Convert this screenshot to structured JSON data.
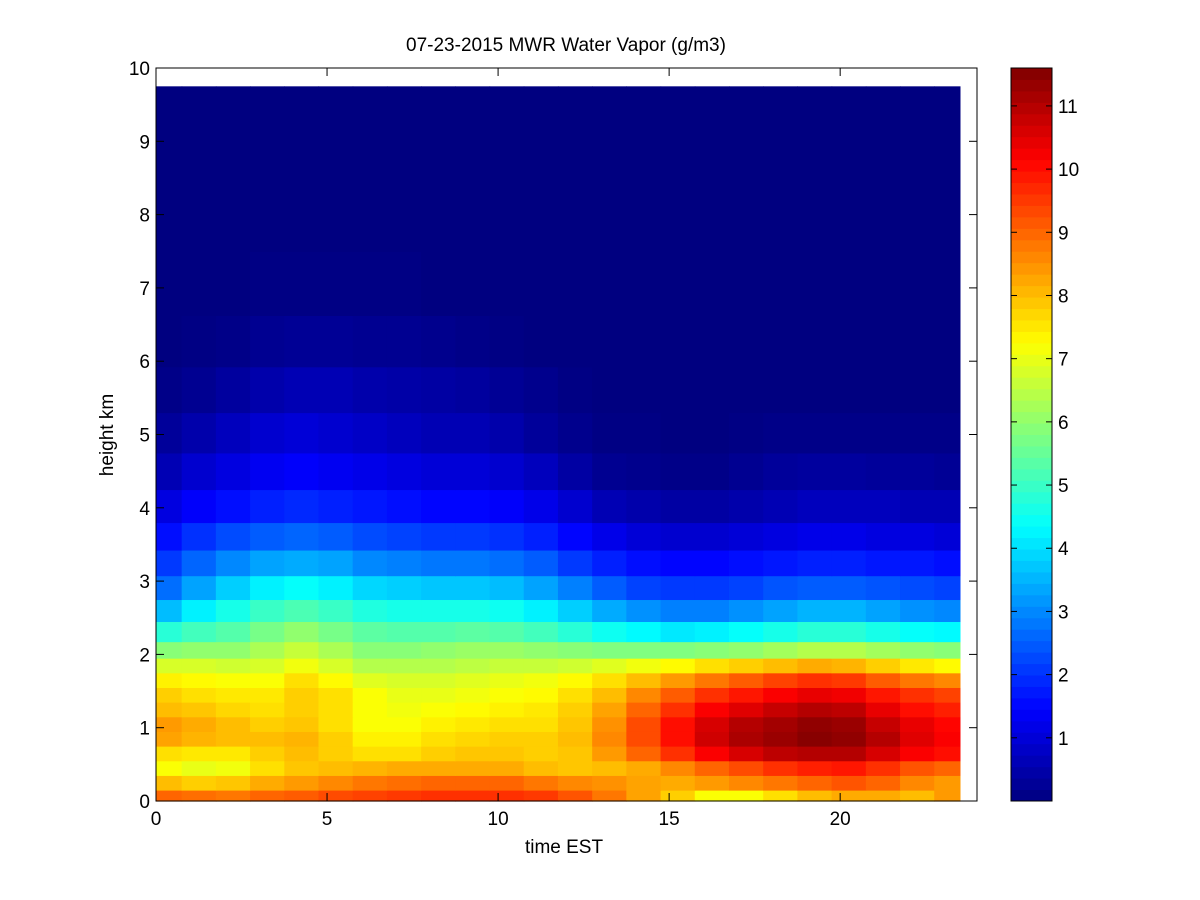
{
  "chart_data": {
    "type": "heatmap",
    "title": "07-23-2015 MWR Water Vapor (g/m3)",
    "xlabel": "time EST",
    "ylabel": "height km",
    "xlim": [
      0,
      24
    ],
    "ylim": [
      0,
      10
    ],
    "xticks": [
      0,
      5,
      10,
      15,
      20
    ],
    "yticks": [
      0,
      1,
      2,
      3,
      4,
      5,
      6,
      7,
      8,
      9,
      10
    ],
    "colorbar": {
      "colormap": "jet",
      "range": [
        0,
        11.6
      ],
      "ticks": [
        1,
        2,
        3,
        4,
        5,
        6,
        7,
        8,
        9,
        10,
        11
      ]
    },
    "grid": false,
    "data_extent": {
      "time": [
        0,
        23.5
      ],
      "height": [
        0,
        9.75
      ]
    },
    "time_EST": [
      0.25,
      1.25,
      2.25,
      3.25,
      4.25,
      5.25,
      6.25,
      7.25,
      8.25,
      9.25,
      10.25,
      11.25,
      12.25,
      13.25,
      14.25,
      15.25,
      16.25,
      17.25,
      18.25,
      19.25,
      20.25,
      21.25,
      22.25,
      23.25
    ],
    "height_km": [
      0.05,
      0.25,
      0.45,
      0.65,
      0.85,
      1.05,
      1.25,
      1.45,
      1.65,
      1.85,
      2.05,
      2.3,
      2.6,
      2.9,
      3.25,
      3.6,
      4.0,
      4.5,
      5.0,
      5.6,
      6.25,
      7.0,
      8.0,
      9.0,
      9.75
    ],
    "values": [
      [
        9.0,
        8.9,
        8.8,
        9.0,
        9.1,
        9.3,
        9.4,
        9.5,
        9.6,
        9.6,
        9.6,
        9.5,
        9.2,
        8.8,
        8.3,
        7.8,
        7.2,
        7.2,
        7.6,
        8.0,
        8.2,
        8.2,
        8.0,
        8.4
      ],
      [
        8.0,
        7.8,
        7.9,
        8.2,
        8.4,
        8.6,
        8.8,
        8.9,
        9.0,
        9.0,
        9.0,
        8.8,
        8.6,
        8.5,
        8.3,
        8.2,
        8.4,
        8.6,
        8.8,
        9.0,
        9.2,
        9.0,
        8.6,
        8.4
      ],
      [
        7.2,
        7.0,
        7.1,
        7.6,
        7.9,
        8.0,
        8.1,
        8.2,
        8.2,
        8.2,
        8.2,
        8.0,
        7.9,
        8.0,
        8.2,
        8.6,
        9.0,
        9.3,
        9.6,
        9.8,
        9.9,
        9.6,
        9.2,
        9.0
      ],
      [
        7.6,
        7.5,
        7.5,
        7.8,
        8.0,
        7.8,
        7.6,
        7.6,
        7.8,
        7.9,
        7.9,
        7.8,
        7.9,
        8.4,
        9.0,
        9.6,
        10.2,
        10.6,
        10.9,
        11.0,
        11.0,
        10.6,
        10.2,
        10.0
      ],
      [
        8.3,
        8.1,
        8.0,
        8.0,
        8.1,
        7.8,
        7.4,
        7.4,
        7.6,
        7.7,
        7.8,
        7.8,
        8.0,
        8.6,
        9.3,
        10.0,
        10.7,
        11.1,
        11.3,
        11.5,
        11.4,
        11.0,
        10.5,
        10.2
      ],
      [
        8.4,
        8.2,
        8.0,
        7.8,
        7.9,
        7.6,
        7.2,
        7.2,
        7.4,
        7.5,
        7.6,
        7.6,
        7.9,
        8.5,
        9.3,
        10.0,
        10.6,
        11.0,
        11.2,
        11.4,
        11.3,
        10.8,
        10.4,
        10.1
      ],
      [
        8.0,
        7.9,
        7.7,
        7.6,
        7.8,
        7.6,
        7.2,
        7.1,
        7.2,
        7.3,
        7.4,
        7.5,
        7.8,
        8.3,
        9.0,
        9.6,
        10.2,
        10.5,
        10.8,
        11.0,
        10.9,
        10.4,
        10.0,
        9.8
      ],
      [
        7.8,
        7.6,
        7.5,
        7.5,
        7.8,
        7.6,
        7.2,
        7.0,
        7.0,
        7.1,
        7.2,
        7.3,
        7.6,
        8.0,
        8.6,
        9.1,
        9.6,
        9.9,
        10.2,
        10.4,
        10.3,
        9.9,
        9.6,
        9.4
      ],
      [
        7.4,
        7.3,
        7.2,
        7.2,
        7.6,
        7.3,
        6.9,
        6.8,
        6.8,
        6.9,
        7.0,
        7.1,
        7.3,
        7.6,
        8.0,
        8.4,
        8.8,
        9.1,
        9.4,
        9.6,
        9.5,
        9.1,
        8.8,
        8.6
      ],
      [
        6.8,
        6.8,
        6.7,
        6.8,
        7.1,
        6.8,
        6.4,
        6.4,
        6.4,
        6.5,
        6.6,
        6.6,
        6.7,
        6.9,
        7.1,
        7.3,
        7.6,
        7.8,
        8.0,
        8.2,
        8.1,
        7.8,
        7.5,
        7.3
      ],
      [
        5.9,
        6.0,
        6.0,
        6.3,
        6.6,
        6.3,
        5.9,
        5.9,
        6.0,
        6.1,
        6.1,
        6.0,
        5.9,
        5.8,
        5.8,
        5.8,
        5.9,
        6.0,
        6.2,
        6.4,
        6.4,
        6.2,
        6.0,
        5.9
      ],
      [
        4.8,
        5.1,
        5.3,
        5.7,
        6.0,
        5.7,
        5.4,
        5.3,
        5.3,
        5.4,
        5.3,
        5.1,
        4.8,
        4.5,
        4.3,
        4.1,
        4.2,
        4.4,
        4.6,
        4.8,
        4.8,
        4.6,
        4.4,
        4.3
      ],
      [
        3.6,
        4.2,
        4.6,
        5.0,
        5.2,
        5.0,
        4.7,
        4.6,
        4.6,
        4.6,
        4.5,
        4.2,
        3.8,
        3.4,
        3.1,
        2.9,
        2.9,
        3.1,
        3.3,
        3.5,
        3.5,
        3.3,
        3.1,
        3.0
      ],
      [
        2.7,
        3.3,
        3.8,
        4.2,
        4.4,
        4.2,
        3.9,
        3.8,
        3.7,
        3.7,
        3.6,
        3.3,
        2.9,
        2.5,
        2.2,
        2.1,
        2.1,
        2.2,
        2.4,
        2.5,
        2.5,
        2.4,
        2.3,
        2.2
      ],
      [
        2.1,
        2.6,
        3.0,
        3.3,
        3.4,
        3.3,
        3.0,
        2.9,
        2.8,
        2.8,
        2.7,
        2.5,
        2.1,
        1.8,
        1.6,
        1.5,
        1.5,
        1.6,
        1.7,
        1.8,
        1.8,
        1.7,
        1.7,
        1.6
      ],
      [
        1.6,
        2.0,
        2.3,
        2.5,
        2.6,
        2.5,
        2.3,
        2.2,
        2.1,
        2.1,
        2.0,
        1.8,
        1.5,
        1.2,
        1.0,
        0.9,
        0.9,
        1.0,
        1.1,
        1.2,
        1.2,
        1.1,
        1.1,
        1.0
      ],
      [
        1.1,
        1.4,
        1.6,
        1.8,
        1.9,
        1.8,
        1.7,
        1.6,
        1.5,
        1.5,
        1.4,
        1.2,
        0.9,
        0.6,
        0.5,
        0.4,
        0.4,
        0.5,
        0.6,
        0.7,
        0.7,
        0.7,
        0.6,
        0.6
      ],
      [
        0.6,
        0.9,
        1.1,
        1.3,
        1.4,
        1.3,
        1.2,
        1.1,
        1.0,
        1.0,
        0.9,
        0.7,
        0.4,
        0.2,
        0.15,
        0.1,
        0.1,
        0.2,
        0.3,
        0.35,
        0.35,
        0.3,
        0.3,
        0.25
      ],
      [
        0.3,
        0.5,
        0.7,
        0.9,
        1.0,
        0.9,
        0.8,
        0.7,
        0.6,
        0.6,
        0.5,
        0.3,
        0.15,
        0.05,
        0.05,
        0.0,
        0.0,
        0.05,
        0.1,
        0.1,
        0.1,
        0.1,
        0.1,
        0.1
      ],
      [
        0.1,
        0.2,
        0.35,
        0.5,
        0.6,
        0.6,
        0.5,
        0.45,
        0.4,
        0.35,
        0.25,
        0.15,
        0.05,
        0.0,
        0.0,
        0.0,
        0.0,
        0.0,
        0.0,
        0.0,
        0.0,
        0.0,
        0.0,
        0.0
      ],
      [
        0.0,
        0.05,
        0.1,
        0.2,
        0.25,
        0.25,
        0.2,
        0.2,
        0.15,
        0.1,
        0.05,
        0.0,
        0.0,
        0.0,
        0.0,
        0.0,
        0.0,
        0.0,
        0.0,
        0.0,
        0.0,
        0.0,
        0.0,
        0.0
      ],
      [
        0.0,
        0.0,
        0.0,
        0.05,
        0.05,
        0.05,
        0.05,
        0.05,
        0.0,
        0.0,
        0.0,
        0.0,
        0.0,
        0.0,
        0.0,
        0.0,
        0.0,
        0.0,
        0.0,
        0.0,
        0.0,
        0.0,
        0.0,
        0.0
      ],
      [
        0.0,
        0.0,
        0.0,
        0.0,
        0.0,
        0.0,
        0.0,
        0.0,
        0.0,
        0.0,
        0.0,
        0.0,
        0.0,
        0.0,
        0.0,
        0.0,
        0.0,
        0.0,
        0.0,
        0.0,
        0.0,
        0.0,
        0.0,
        0.0
      ],
      [
        0.0,
        0.0,
        0.0,
        0.0,
        0.0,
        0.0,
        0.0,
        0.0,
        0.0,
        0.0,
        0.0,
        0.0,
        0.0,
        0.0,
        0.0,
        0.0,
        0.0,
        0.0,
        0.0,
        0.0,
        0.0,
        0.0,
        0.0,
        0.0
      ],
      [
        0.0,
        0.0,
        0.0,
        0.0,
        0.0,
        0.0,
        0.0,
        0.0,
        0.0,
        0.0,
        0.0,
        0.0,
        0.0,
        0.0,
        0.0,
        0.0,
        0.0,
        0.0,
        0.0,
        0.0,
        0.0,
        0.0,
        0.0,
        0.0
      ]
    ]
  }
}
